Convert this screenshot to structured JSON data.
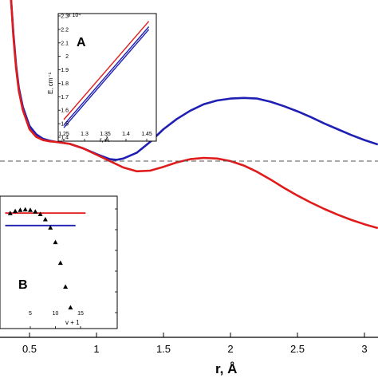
{
  "chart_data": [
    {
      "type": "line",
      "panel": "main",
      "xlabel": "r, Å",
      "x_ticks": [
        "0.5",
        "1",
        "1.5",
        "2",
        "2.5",
        "3"
      ],
      "xlim": [
        0.1,
        3.1
      ],
      "dashed_reference_line": true,
      "series": [
        {
          "color": "#1f1fb4",
          "x": [
            0.36,
            0.38,
            0.4,
            0.42,
            0.45,
            0.5,
            0.55,
            0.6,
            0.65,
            0.7,
            0.8,
            0.9,
            1.0,
            1.1,
            1.15,
            1.2,
            1.3,
            1.4,
            1.5,
            1.6,
            1.7,
            1.8,
            1.9,
            2.0,
            2.1,
            2.2,
            2.3,
            2.4,
            2.5,
            2.6,
            2.7,
            2.8,
            2.9,
            3.0,
            3.1
          ],
          "y": [
            260,
            200,
            150,
            115,
            85,
            55,
            42,
            35,
            32,
            30,
            27,
            20,
            11,
            3,
            2,
            4,
            13,
            30,
            50,
            66,
            79,
            89,
            95,
            98,
            99,
            98,
            93,
            86,
            78,
            69,
            59,
            50,
            41,
            33,
            26
          ]
        },
        {
          "color": "#e01b1b",
          "x": [
            0.36,
            0.38,
            0.4,
            0.42,
            0.45,
            0.5,
            0.55,
            0.6,
            0.65,
            0.7,
            0.8,
            0.9,
            1.0,
            1.1,
            1.2,
            1.3,
            1.4,
            1.5,
            1.6,
            1.7,
            1.8,
            1.9,
            2.0,
            2.1,
            2.2,
            2.3,
            2.4,
            2.5,
            2.6,
            2.7,
            2.8,
            2.9,
            3.0,
            3.1
          ],
          "y": [
            260,
            195,
            145,
            110,
            80,
            50,
            38,
            33,
            31,
            30,
            27,
            20,
            10,
            0,
            -10,
            -16,
            -15,
            -9,
            -2,
            3,
            5,
            4,
            0,
            -7,
            -17,
            -29,
            -42,
            -54,
            -65,
            -75,
            -84,
            -92,
            -99,
            -105
          ]
        }
      ]
    },
    {
      "type": "line",
      "panel": "inset A",
      "label": "A",
      "xlabel": "r, Å",
      "ylabel": "E, cm⁻¹",
      "y_exponent": "x 10⁴",
      "x_ticks": [
        "1.25",
        "1.3",
        "1.35",
        "1.4",
        "1.45"
      ],
      "y_ticks": [
        "1.4",
        "1.5",
        "1.6",
        "1.7",
        "1.8",
        "1.9",
        "2",
        "2.1",
        "2.2",
        "2.3"
      ],
      "xlim": [
        1.24,
        1.46
      ],
      "ylim": [
        1.4,
        2.3
      ],
      "series": [
        {
          "color": "#e01b1b",
          "x": [
            1.25,
            1.455
          ],
          "y": [
            1.53,
            2.26
          ]
        },
        {
          "color": "#1f1fb4",
          "x": [
            1.25,
            1.455
          ],
          "y": [
            1.49,
            2.22
          ]
        },
        {
          "color": "#1f1fb4",
          "x": [
            1.25,
            1.455
          ],
          "y": [
            1.47,
            2.2
          ]
        }
      ]
    },
    {
      "type": "scatter",
      "panel": "inset B",
      "label": "B",
      "xlabel": "v + 1",
      "x_ticks": [
        "5",
        "10",
        "15"
      ],
      "xlim": [
        0,
        17
      ],
      "ylim": [
        0,
        10
      ],
      "points": {
        "x": [
          1,
          2,
          3,
          4,
          5,
          6,
          7,
          8,
          9,
          10,
          11,
          12,
          13
        ],
        "y": [
          9.6,
          9.8,
          9.9,
          9.95,
          9.9,
          9.75,
          9.5,
          9.0,
          8.2,
          6.8,
          4.8,
          2.5,
          0.5
        ]
      },
      "lines": [
        {
          "color": "#e01b1b",
          "y": 9.6,
          "x_range": [
            0,
            16
          ]
        },
        {
          "color": "#1f1fb4",
          "y": 8.4,
          "x_range": [
            0,
            14
          ]
        }
      ]
    }
  ]
}
